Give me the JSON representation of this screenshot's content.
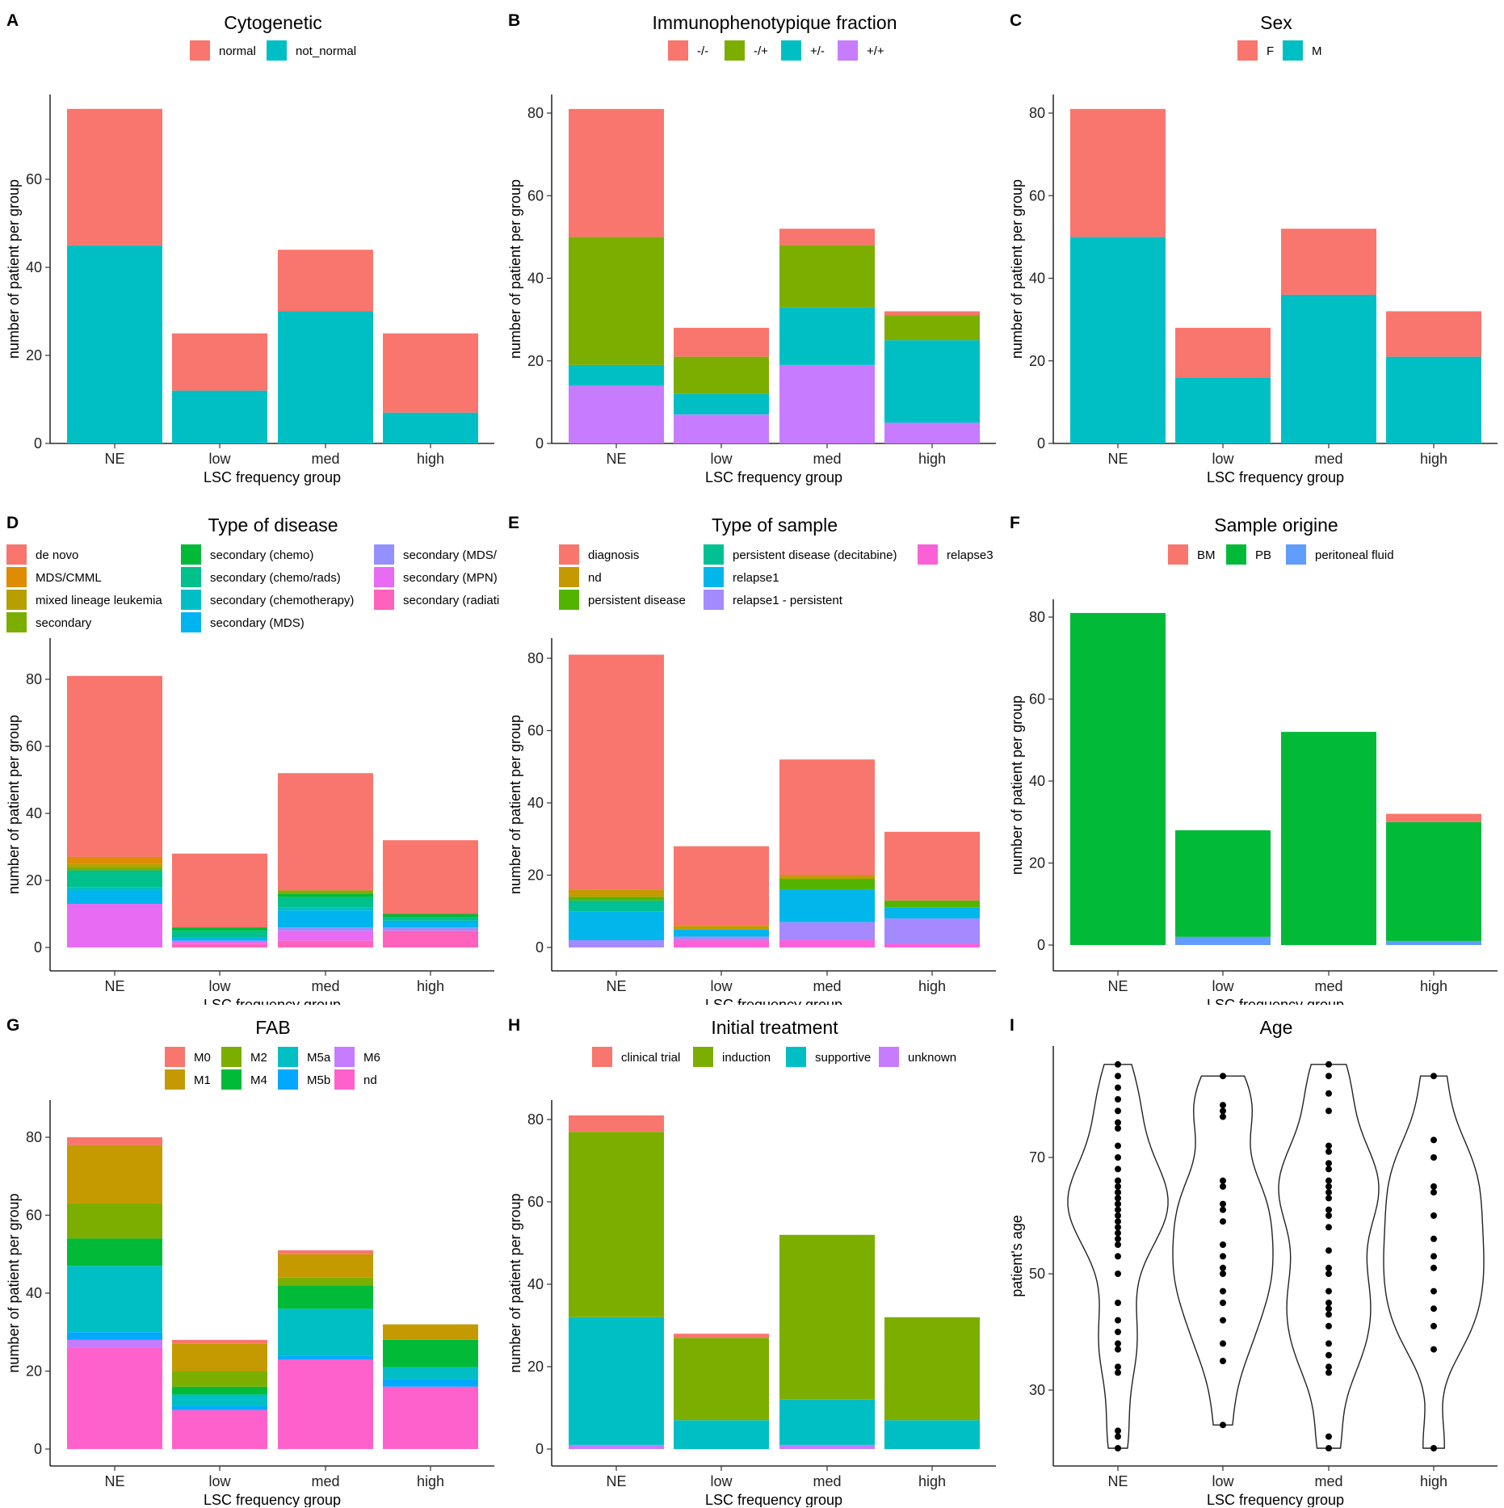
{
  "chart_data": [
    {
      "id": "A",
      "type": "bar",
      "stacked": true,
      "panel_label": "A",
      "title": "Cytogenetic",
      "xlabel": "LSC frequency group",
      "ylabel": "number of patient per group",
      "categories": [
        "NE",
        "low",
        "med",
        "high"
      ],
      "ylim": [
        0,
        76
      ],
      "yticks": [
        0,
        20,
        40,
        60
      ],
      "legend_columns": 2,
      "legend_position": "top",
      "series": [
        {
          "name": "normal",
          "color": "#F8766D",
          "values": [
            31,
            13,
            14,
            18
          ]
        },
        {
          "name": "not_normal",
          "color": "#00BFC4",
          "values": [
            45,
            12,
            30,
            7
          ]
        }
      ]
    },
    {
      "id": "B",
      "type": "bar",
      "stacked": true,
      "panel_label": "B",
      "title": "Immunophenotypique fraction",
      "xlabel": "LSC frequency group",
      "ylabel": "number of patient per group",
      "categories": [
        "NE",
        "low",
        "med",
        "high"
      ],
      "ylim": [
        0,
        81
      ],
      "yticks": [
        0,
        20,
        40,
        60,
        80
      ],
      "legend_columns": 4,
      "legend_position": "top",
      "series": [
        {
          "name": "-/-",
          "color": "#F8766D",
          "values": [
            31,
            7,
            4,
            1
          ]
        },
        {
          "name": "-/+",
          "color": "#7CAE00",
          "values": [
            31,
            9,
            15,
            6
          ]
        },
        {
          "name": "+/-",
          "color": "#00BFC4",
          "values": [
            5,
            5,
            14,
            20
          ]
        },
        {
          "name": "+/+",
          "color": "#C77CFF",
          "values": [
            14,
            7,
            19,
            5
          ]
        }
      ]
    },
    {
      "id": "C",
      "type": "bar",
      "stacked": true,
      "panel_label": "C",
      "title": "Sex",
      "xlabel": "LSC frequency group",
      "ylabel": "number of patient per group",
      "categories": [
        "NE",
        "low",
        "med",
        "high"
      ],
      "ylim": [
        0,
        81
      ],
      "yticks": [
        0,
        20,
        40,
        60,
        80
      ],
      "legend_columns": 2,
      "legend_position": "top",
      "series": [
        {
          "name": "F",
          "color": "#F8766D",
          "values": [
            31,
            12,
            16,
            11
          ]
        },
        {
          "name": "M",
          "color": "#00BFC4",
          "values": [
            50,
            16,
            36,
            21
          ]
        }
      ]
    },
    {
      "id": "D",
      "type": "bar",
      "stacked": true,
      "panel_label": "D",
      "title": "Type of disease",
      "xlabel": "LSC frequency group",
      "ylabel": "number of patient per group",
      "categories": [
        "NE",
        "low",
        "med",
        "high"
      ],
      "ylim": [
        0,
        81
      ],
      "yticks": [
        0,
        20,
        40,
        60,
        80
      ],
      "legend_columns": 3,
      "legend_position": "top",
      "legend_order": "column",
      "series": [
        {
          "name": "de novo",
          "color": "#F8766D",
          "values": [
            54,
            22,
            35,
            22
          ]
        },
        {
          "name": "MDS/CMML",
          "color": "#DE8C00",
          "values": [
            2,
            0,
            0,
            0
          ]
        },
        {
          "name": "mixed lineage leukemia",
          "color": "#B79F00",
          "values": [
            1,
            0,
            0,
            0
          ]
        },
        {
          "name": "secondary",
          "color": "#7CAE00",
          "values": [
            1,
            0,
            1,
            0
          ]
        },
        {
          "name": "secondary (chemo)",
          "color": "#00BA38",
          "values": [
            0,
            1,
            1,
            1
          ]
        },
        {
          "name": "secondary (chemo/rads)",
          "color": "#00C08B",
          "values": [
            5,
            2,
            3,
            1
          ]
        },
        {
          "name": "secondary (chemotherapy)",
          "color": "#00BFC4",
          "values": [
            1,
            0,
            1,
            0
          ]
        },
        {
          "name": "secondary (MDS)",
          "color": "#00B4F0",
          "values": [
            4,
            1,
            5,
            2
          ]
        },
        {
          "name": "secondary (MDS/",
          "color": "#9590FF",
          "values": [
            0,
            0,
            1,
            1
          ]
        },
        {
          "name": "secondary (MPN)",
          "color": "#E76BF3",
          "values": [
            13,
            1,
            3,
            0
          ]
        },
        {
          "name": "secondary (radiati",
          "color": "#FF62BC",
          "values": [
            0,
            1,
            2,
            5
          ]
        }
      ]
    },
    {
      "id": "E",
      "type": "bar",
      "stacked": true,
      "panel_label": "E",
      "title": "Type of sample",
      "xlabel": "LSC frequency group",
      "ylabel": "number of patient per group",
      "categories": [
        "NE",
        "low",
        "med",
        "high"
      ],
      "ylim": [
        0,
        81
      ],
      "yticks": [
        0,
        20,
        40,
        60,
        80
      ],
      "legend_columns": 3,
      "legend_position": "top",
      "legend_order": "column",
      "series": [
        {
          "name": "diagnosis",
          "color": "#F8766D",
          "values": [
            65,
            22,
            32,
            19
          ]
        },
        {
          "name": "nd",
          "color": "#C49A00",
          "values": [
            2,
            1,
            1,
            0
          ]
        },
        {
          "name": "persistent disease",
          "color": "#53B400",
          "values": [
            1,
            0,
            3,
            2
          ]
        },
        {
          "name": "persistent disease (decitabine)",
          "color": "#00C094",
          "values": [
            3,
            0,
            0,
            0
          ]
        },
        {
          "name": "relapse1",
          "color": "#00B6EB",
          "values": [
            8,
            2,
            9,
            3
          ]
        },
        {
          "name": "relapse1 - persistent",
          "color": "#A58AFF",
          "values": [
            2,
            1,
            5,
            7
          ]
        },
        {
          "name": "relapse3",
          "color": "#FB61D7",
          "values": [
            0,
            2,
            2,
            1
          ]
        }
      ]
    },
    {
      "id": "F",
      "type": "bar",
      "stacked": true,
      "panel_label": "F",
      "title": "Sample origine",
      "xlabel": "LSC frequency group",
      "ylabel": "number of patient per group",
      "categories": [
        "NE",
        "low",
        "med",
        "high"
      ],
      "ylim": [
        0,
        81
      ],
      "yticks": [
        0,
        20,
        40,
        60,
        80
      ],
      "legend_columns": 3,
      "legend_position": "top",
      "series": [
        {
          "name": "BM",
          "color": "#F8766D",
          "values": [
            0,
            0,
            0,
            2
          ]
        },
        {
          "name": "PB",
          "color": "#00BA38",
          "values": [
            81,
            26,
            52,
            29
          ]
        },
        {
          "name": "peritoneal fluid",
          "color": "#619CFF",
          "values": [
            0,
            2,
            0,
            1
          ]
        }
      ]
    },
    {
      "id": "G",
      "type": "bar",
      "stacked": true,
      "panel_label": "G",
      "title": "FAB",
      "xlabel": "LSC frequency group",
      "ylabel": "number of patient per group",
      "categories": [
        "NE",
        "low",
        "med",
        "high"
      ],
      "ylim": [
        0,
        80
      ],
      "yticks": [
        0,
        20,
        40,
        60,
        80
      ],
      "legend_columns": 4,
      "legend_position": "top",
      "legend_order": "column",
      "series": [
        {
          "name": "M0",
          "color": "#F8766D",
          "values": [
            2,
            1,
            1,
            0
          ]
        },
        {
          "name": "M1",
          "color": "#C49A00",
          "values": [
            15,
            7,
            6,
            4
          ]
        },
        {
          "name": "M2",
          "color": "#7CAE00",
          "values": [
            9,
            4,
            2,
            0
          ]
        },
        {
          "name": "M4",
          "color": "#00BA38",
          "values": [
            7,
            2,
            6,
            7
          ]
        },
        {
          "name": "M5a",
          "color": "#00BFC4",
          "values": [
            17,
            3,
            12,
            3
          ]
        },
        {
          "name": "M5b",
          "color": "#00A9FF",
          "values": [
            2,
            1,
            1,
            2
          ]
        },
        {
          "name": "M6",
          "color": "#C77CFF",
          "values": [
            2,
            0,
            0,
            0
          ]
        },
        {
          "name": "nd",
          "color": "#FF61CC",
          "values": [
            26,
            10,
            23,
            16
          ]
        }
      ]
    },
    {
      "id": "H",
      "type": "bar",
      "stacked": true,
      "panel_label": "H",
      "title": "Initial treatment",
      "xlabel": "LSC frequency group",
      "ylabel": "number of patient per group",
      "categories": [
        "NE",
        "low",
        "med",
        "high"
      ],
      "ylim": [
        0,
        81
      ],
      "yticks": [
        0,
        20,
        40,
        60,
        80
      ],
      "legend_columns": 4,
      "legend_position": "top",
      "series": [
        {
          "name": "clinical trial",
          "color": "#F8766D",
          "values": [
            4,
            1,
            0,
            0
          ]
        },
        {
          "name": "induction",
          "color": "#7CAE00",
          "values": [
            45,
            20,
            40,
            25
          ]
        },
        {
          "name": "supportive",
          "color": "#00BFC4",
          "values": [
            31,
            7,
            11,
            7
          ]
        },
        {
          "name": "unknown",
          "color": "#C77CFF",
          "values": [
            1,
            0,
            1,
            0
          ]
        }
      ]
    },
    {
      "id": "I",
      "type": "violin",
      "panel_label": "I",
      "title": "Age",
      "xlabel": "LSC frequency group",
      "ylabel": "patient's age",
      "categories": [
        "NE",
        "low",
        "med",
        "high"
      ],
      "ylim": [
        19,
        86
      ],
      "yticks": [
        30,
        50,
        70
      ],
      "groups": [
        {
          "name": "NE",
          "range": [
            20,
            86
          ],
          "points": [
            20,
            22,
            23,
            33,
            34,
            37,
            38,
            40,
            42,
            45,
            50,
            53,
            55,
            56,
            57,
            58,
            59,
            60,
            61,
            62,
            62,
            63,
            63,
            64,
            64,
            65,
            66,
            66,
            68,
            70,
            72,
            75,
            76,
            78,
            80,
            82,
            84,
            86
          ]
        },
        {
          "name": "low",
          "range": [
            24,
            84
          ],
          "points": [
            24,
            35,
            38,
            42,
            45,
            47,
            50,
            51,
            53,
            55,
            59,
            61,
            62,
            65,
            66,
            77,
            78,
            79,
            84
          ]
        },
        {
          "name": "med",
          "range": [
            20,
            86
          ],
          "points": [
            20,
            22,
            33,
            34,
            36,
            38,
            41,
            43,
            44,
            45,
            47,
            50,
            51,
            54,
            58,
            60,
            61,
            63,
            64,
            65,
            66,
            68,
            69,
            71,
            72,
            78,
            81,
            84,
            86
          ]
        },
        {
          "name": "high",
          "range": [
            20,
            84
          ],
          "points": [
            20,
            37,
            41,
            44,
            47,
            51,
            53,
            56,
            60,
            64,
            65,
            70,
            73,
            84
          ]
        }
      ]
    }
  ]
}
